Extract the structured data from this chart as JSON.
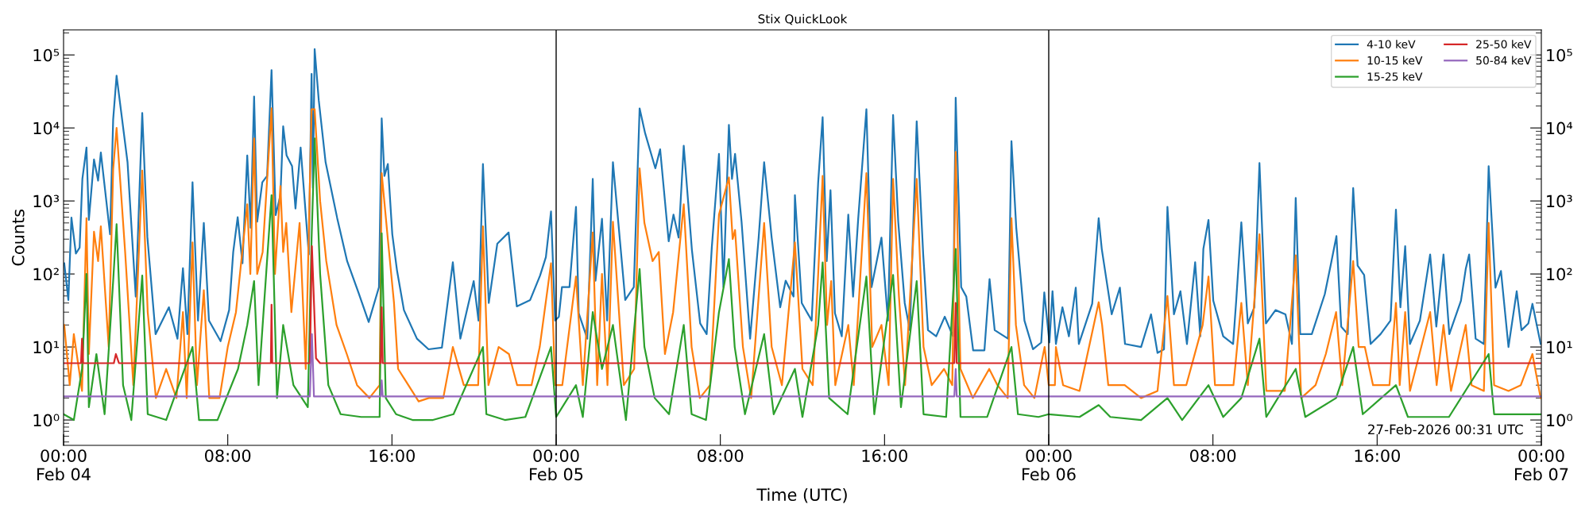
{
  "chart_data": {
    "type": "line",
    "title": "Stix QuickLook",
    "xlabel": "Time (UTC)",
    "ylabel": "Counts",
    "log": "y",
    "grid": false,
    "legend": "top right",
    "line_style": "solid",
    "marker": "none",
    "xlim": [
      "2026-02-04T00:00",
      "2026-02-07T00:00"
    ],
    "xticks": [
      {
        "value": "2026-02-04T00:00",
        "label": "00:00\nFeb 04"
      },
      {
        "value": "2026-02-04T08:00",
        "label": "08:00"
      },
      {
        "value": "2026-02-04T16:00",
        "label": "16:00"
      },
      {
        "value": "2026-02-05T00:00",
        "label": "00:00\nFeb 05"
      },
      {
        "value": "2026-02-05T08:00",
        "label": "08:00"
      },
      {
        "value": "2026-02-05T16:00",
        "label": "16:00"
      },
      {
        "value": "2026-02-06T00:00",
        "label": "00:00\nFeb 06"
      },
      {
        "value": "2026-02-06T08:00",
        "label": "08:00"
      },
      {
        "value": "2026-02-06T16:00",
        "label": "16:00"
      },
      {
        "value": "2026-02-07T00:00",
        "label": "00:00\nFeb 07"
      }
    ],
    "ylim": [
      0.45,
      220000
    ],
    "yticks": [
      {
        "value": 1,
        "label": "10⁰"
      },
      {
        "value": 10,
        "label": "10¹"
      },
      {
        "value": 100,
        "label": "10²"
      },
      {
        "value": 1000,
        "label": "10³"
      },
      {
        "value": 10000,
        "label": "10⁴"
      },
      {
        "value": 100000,
        "label": "10⁵"
      }
    ],
    "ref_lines": [
      {
        "axis": "x",
        "value": "2026-02-05T00:00",
        "color": "#000000"
      },
      {
        "axis": "x",
        "value": "2026-02-06T00:00",
        "color": "#000000"
      }
    ],
    "annotations": [
      "27-Feb-2026 00:31 UTC"
    ],
    "series": [
      {
        "name": "4-10 keV",
        "color": "#1f77b4",
        "x": [
          "2026-02-04T00:02",
          "2026-02-04T00:14",
          "2026-02-04T00:23",
          "2026-02-04T00:36",
          "2026-02-04T00:47",
          "2026-02-04T00:55",
          "2026-02-04T01:07",
          "2026-02-04T01:14",
          "2026-02-04T01:29",
          "2026-02-04T01:41",
          "2026-02-04T01:49",
          "2026-02-04T02:16",
          "2026-02-04T02:25",
          "2026-02-04T02:35",
          "2026-02-04T03:07",
          "2026-02-04T03:31",
          "2026-02-04T03:50",
          "2026-02-04T04:05",
          "2026-02-04T04:29",
          "2026-02-04T05:08",
          "2026-02-04T05:33",
          "2026-02-04T05:49",
          "2026-02-04T06:02",
          "2026-02-04T06:17",
          "2026-02-04T06:33",
          "2026-02-04T06:50",
          "2026-02-04T07:05",
          "2026-02-04T07:39",
          "2026-02-04T08:04",
          "2026-02-04T08:16",
          "2026-02-04T08:29",
          "2026-02-04T08:43",
          "2026-02-04T08:57",
          "2026-02-04T09:07",
          "2026-02-04T09:17",
          "2026-02-04T09:26",
          "2026-02-04T09:41",
          "2026-02-04T09:55",
          "2026-02-04T10:08",
          "2026-02-04T10:20",
          "2026-02-04T10:34",
          "2026-02-04T10:42",
          "2026-02-04T10:52",
          "2026-02-04T11:08",
          "2026-02-04T11:18",
          "2026-02-04T11:33",
          "2026-02-04T11:57",
          "2026-02-04T12:05",
          "2026-02-04T12:09",
          "2026-02-04T12:14",
          "2026-02-04T12:26",
          "2026-02-04T12:46",
          "2026-02-04T13:20",
          "2026-02-04T13:49",
          "2026-02-04T14:23",
          "2026-02-04T14:52",
          "2026-02-04T15:22",
          "2026-02-04T15:30",
          "2026-02-04T15:38",
          "2026-02-04T15:48",
          "2026-02-04T16:01",
          "2026-02-04T16:15",
          "2026-02-04T16:35",
          "2026-02-04T17:13",
          "2026-02-04T17:47",
          "2026-02-04T18:26",
          "2026-02-04T18:58",
          "2026-02-04T19:20",
          "2026-02-04T19:59",
          "2026-02-04T20:13",
          "2026-02-04T20:26",
          "2026-02-04T20:43",
          "2026-02-04T21:08",
          "2026-02-04T21:41",
          "2026-02-04T22:05",
          "2026-02-04T22:44",
          "2026-02-04T23:13",
          "2026-02-04T23:30",
          "2026-02-04T23:45",
          "2026-02-04T23:57",
          "2026-02-05T00:08",
          "2026-02-05T00:17",
          "2026-02-05T00:39",
          "2026-02-05T00:58",
          "2026-02-05T01:06",
          "2026-02-05T01:31",
          "2026-02-05T01:47",
          "2026-02-05T01:55",
          "2026-02-05T02:14",
          "2026-02-05T02:29",
          "2026-02-05T02:46",
          "2026-02-05T03:22",
          "2026-02-05T03:47",
          "2026-02-05T04:04",
          "2026-02-05T04:20",
          "2026-02-05T04:50",
          "2026-02-05T05:04",
          "2026-02-05T05:29",
          "2026-02-05T05:43",
          "2026-02-05T05:58",
          "2026-02-05T06:13",
          "2026-02-05T06:37",
          "2026-02-05T07:01",
          "2026-02-05T07:20",
          "2026-02-05T07:35",
          "2026-02-05T07:56",
          "2026-02-05T08:09",
          "2026-02-05T08:25",
          "2026-02-05T08:34",
          "2026-02-05T08:43",
          "2026-02-05T09:02",
          "2026-02-05T09:27",
          "2026-02-05T09:52",
          "2026-02-05T10:08",
          "2026-02-05T10:30",
          "2026-02-05T10:55",
          "2026-02-05T11:11",
          "2026-02-05T11:34",
          "2026-02-05T11:38",
          "2026-02-05T11:58",
          "2026-02-05T12:27",
          "2026-02-05T12:46",
          "2026-02-05T12:59",
          "2026-02-05T13:11",
          "2026-02-05T13:22",
          "2026-02-05T13:35",
          "2026-02-05T13:55",
          "2026-02-05T14:14",
          "2026-02-05T14:28",
          "2026-02-05T14:43",
          "2026-02-05T15:07",
          "2026-02-05T15:22",
          "2026-02-05T15:51",
          "2026-02-05T16:10",
          "2026-02-05T16:25",
          "2026-02-05T16:40",
          "2026-02-05T16:59",
          "2026-02-05T17:14",
          "2026-02-05T17:34",
          "2026-02-05T17:53",
          "2026-02-05T18:07",
          "2026-02-05T18:31",
          "2026-02-05T18:56",
          "2026-02-05T19:20",
          "2026-02-05T19:28",
          "2026-02-05T19:44",
          "2026-02-05T19:59",
          "2026-02-05T20:19",
          "2026-02-05T20:52",
          "2026-02-05T21:07",
          "2026-02-05T21:22",
          "2026-02-05T22:01",
          "2026-02-05T22:11",
          "2026-02-05T22:25",
          "2026-02-05T22:49",
          "2026-02-05T23:14",
          "2026-02-05T23:38",
          "2026-02-05T23:47",
          "2026-02-06T00:02",
          "2026-02-06T00:11",
          "2026-02-06T00:21",
          "2026-02-06T00:40",
          "2026-02-06T00:59",
          "2026-02-06T01:19",
          "2026-02-06T01:28",
          "2026-02-06T02:07",
          "2026-02-06T02:26",
          "2026-02-06T02:35",
          "2026-02-06T03:04",
          "2026-02-06T03:28",
          "2026-02-06T03:43",
          "2026-02-06T04:30",
          "2026-02-06T04:59",
          "2026-02-06T05:18",
          "2026-02-06T05:37",
          "2026-02-06T05:47",
          "2026-02-06T06:06",
          "2026-02-06T06:25",
          "2026-02-06T06:44",
          "2026-02-06T07:08",
          "2026-02-06T07:23",
          "2026-02-06T07:32",
          "2026-02-06T07:47",
          "2026-02-06T08:01",
          "2026-02-06T08:30",
          "2026-02-06T08:59",
          "2026-02-06T09:08",
          "2026-02-06T09:23",
          "2026-02-06T09:42",
          "2026-02-06T10:01",
          "2026-02-06T10:16",
          "2026-02-06T10:35",
          "2026-02-06T11:03",
          "2026-02-06T11:32",
          "2026-02-06T11:51",
          "2026-02-06T12:02",
          "2026-02-06T12:15",
          "2026-02-06T12:49",
          "2026-02-06T13:27",
          "2026-02-06T13:46",
          "2026-02-06T14:01",
          "2026-02-06T14:15",
          "2026-02-06T14:34",
          "2026-02-06T14:50",
          "2026-02-06T15:03",
          "2026-02-06T15:22",
          "2026-02-06T15:41",
          "2026-02-06T16:10",
          "2026-02-06T16:39",
          "2026-02-06T16:55",
          "2026-02-06T17:08",
          "2026-02-06T17:22",
          "2026-02-06T17:36",
          "2026-02-06T18:05",
          "2026-02-06T18:35",
          "2026-02-06T18:53",
          "2026-02-06T19:14",
          "2026-02-06T19:31",
          "2026-02-06T20:05",
          "2026-02-06T20:19",
          "2026-02-06T20:29",
          "2026-02-06T20:48",
          "2026-02-06T21:12",
          "2026-02-06T21:26",
          "2026-02-06T21:46",
          "2026-02-06T22:02",
          "2026-02-06T22:24",
          "2026-02-06T22:48",
          "2026-02-06T23:02",
          "2026-02-06T23:22",
          "2026-02-06T23:34",
          "2026-02-06T23:58"
        ],
        "values": [
          140,
          44,
          590,
          190,
          230,
          2000,
          5400,
          550,
          3700,
          1900,
          4600,
          350,
          13000,
          52000,
          3400,
          49,
          16000,
          320,
          15,
          35,
          13,
          120,
          15,
          1800,
          23,
          500,
          23,
          12,
          32,
          200,
          600,
          140,
          4200,
          430,
          27000,
          520,
          1800,
          2200,
          62000,
          640,
          1200,
          10500,
          4200,
          3000,
          790,
          5400,
          185,
          55000,
          1500,
          120000,
          24000,
          3400,
          580,
          150,
          54,
          22,
          66,
          13500,
          2200,
          3200,
          350,
          110,
          32,
          13,
          9.3,
          9.8,
          145,
          13,
          80,
          23,
          3200,
          40,
          260,
          370,
          36,
          44,
          95,
          170,
          720,
          23,
          26,
          66,
          66,
          830,
          29,
          13,
          2000,
          81,
          570,
          23,
          3400,
          44,
          66,
          18500,
          8500,
          2800,
          5100,
          280,
          650,
          315,
          5700,
          210,
          21,
          15,
          230,
          4400,
          66,
          11000,
          2000,
          4400,
          520,
          13,
          315,
          3400,
          315,
          35,
          81,
          49,
          1200,
          40,
          23,
          1800,
          14000,
          150,
          1400,
          29,
          14,
          650,
          49,
          570,
          18000,
          66,
          315,
          23,
          15000,
          520,
          40,
          17,
          12300,
          185,
          17,
          14,
          26,
          14,
          26000,
          66,
          49,
          9,
          9,
          85,
          17,
          13,
          6600,
          430,
          23,
          9.3,
          11.5,
          56,
          11.5,
          58,
          11,
          35,
          14,
          65,
          11,
          39,
          580,
          220,
          28,
          65,
          11,
          10,
          28,
          8.3,
          9.3,
          830,
          28,
          58,
          11,
          145,
          14,
          220,
          550,
          43,
          14,
          11,
          43,
          510,
          21,
          35,
          3300,
          21,
          32,
          28,
          11,
          1100,
          15,
          15,
          53,
          145,
          330,
          19,
          15,
          1500,
          130,
          97,
          11,
          15,
          23,
          760,
          35,
          240,
          11,
          23,
          185,
          19,
          185,
          15,
          43,
          117,
          185,
          13,
          11,
          3000,
          65,
          110,
          10,
          58,
          17,
          21,
          39,
          11
        ]
      },
      {
        "name": "10-15 keV",
        "color": "#ff7f0e",
        "x": [
          "2026-02-04T00:02",
          "2026-02-04T00:18",
          "2026-02-04T00:30",
          "2026-02-04T00:54",
          "2026-02-04T01:07",
          "2026-02-04T01:14",
          "2026-02-04T01:29",
          "2026-02-04T01:41",
          "2026-02-04T01:49",
          "2026-02-04T02:12",
          "2026-02-04T02:25",
          "2026-02-04T02:35",
          "2026-02-04T03:00",
          "2026-02-04T03:24",
          "2026-02-04T03:50",
          "2026-02-04T04:06",
          "2026-02-04T04:30",
          "2026-02-04T05:00",
          "2026-02-04T05:30",
          "2026-02-04T05:49",
          "2026-02-04T06:00",
          "2026-02-04T06:17",
          "2026-02-04T06:30",
          "2026-02-04T06:50",
          "2026-02-04T07:06",
          "2026-02-04T07:36",
          "2026-02-04T08:00",
          "2026-02-04T08:24",
          "2026-02-04T08:57",
          "2026-02-04T09:06",
          "2026-02-04T09:17",
          "2026-02-04T09:26",
          "2026-02-04T09:42",
          "2026-02-04T10:08",
          "2026-02-04T10:18",
          "2026-02-04T10:34",
          "2026-02-04T10:42",
          "2026-02-04T10:51",
          "2026-02-04T11:06",
          "2026-02-04T11:30",
          "2026-02-04T11:48",
          "2026-02-04T12:05",
          "2026-02-04T12:14",
          "2026-02-04T12:30",
          "2026-02-04T12:48",
          "2026-02-04T13:18",
          "2026-02-04T13:48",
          "2026-02-04T14:18",
          "2026-02-04T14:54",
          "2026-02-04T15:24",
          "2026-02-04T15:30",
          "2026-02-04T15:48",
          "2026-02-04T16:06",
          "2026-02-04T16:18",
          "2026-02-04T16:48",
          "2026-02-04T17:18",
          "2026-02-04T17:48",
          "2026-02-04T18:30",
          "2026-02-04T18:58",
          "2026-02-04T19:30",
          "2026-02-04T20:12",
          "2026-02-04T20:26",
          "2026-02-04T20:42",
          "2026-02-04T21:12",
          "2026-02-04T21:42",
          "2026-02-04T22:06",
          "2026-02-04T22:48",
          "2026-02-04T23:12",
          "2026-02-04T23:45",
          "2026-02-04T23:57",
          "2026-02-05T00:18",
          "2026-02-05T00:58",
          "2026-02-05T01:18",
          "2026-02-05T01:47",
          "2026-02-05T02:00",
          "2026-02-05T02:14",
          "2026-02-05T02:30",
          "2026-02-05T02:46",
          "2026-02-05T03:18",
          "2026-02-05T03:48",
          "2026-02-05T04:04",
          "2026-02-05T04:18",
          "2026-02-05T04:42",
          "2026-02-05T05:00",
          "2026-02-05T05:18",
          "2026-02-05T05:42",
          "2026-02-05T06:13",
          "2026-02-05T06:36",
          "2026-02-05T07:00",
          "2026-02-05T07:30",
          "2026-02-05T07:56",
          "2026-02-05T08:25",
          "2026-02-05T08:36",
          "2026-02-05T08:43",
          "2026-02-05T09:06",
          "2026-02-05T09:30",
          "2026-02-05T10:08",
          "2026-02-05T10:30",
          "2026-02-05T11:00",
          "2026-02-05T11:38",
          "2026-02-05T12:00",
          "2026-02-05T12:30",
          "2026-02-05T12:46",
          "2026-02-05T12:59",
          "2026-02-05T13:12",
          "2026-02-05T13:24",
          "2026-02-05T13:36",
          "2026-02-05T14:14",
          "2026-02-05T14:30",
          "2026-02-05T14:43",
          "2026-02-05T15:07",
          "2026-02-05T15:24",
          "2026-02-05T15:51",
          "2026-02-05T16:12",
          "2026-02-05T16:25",
          "2026-02-05T16:42",
          "2026-02-05T17:00",
          "2026-02-05T17:34",
          "2026-02-05T17:54",
          "2026-02-05T18:18",
          "2026-02-05T18:54",
          "2026-02-05T19:18",
          "2026-02-05T19:28",
          "2026-02-05T19:42",
          "2026-02-05T20:18",
          "2026-02-05T21:06",
          "2026-02-05T21:30",
          "2026-02-05T22:00",
          "2026-02-05T22:11",
          "2026-02-05T22:24",
          "2026-02-05T22:48",
          "2026-02-05T23:18",
          "2026-02-05T23:48",
          "2026-02-06T00:00",
          "2026-02-06T00:18",
          "2026-02-06T00:21",
          "2026-02-06T00:42",
          "2026-02-06T01:30",
          "2026-02-06T02:26",
          "2026-02-06T02:36",
          "2026-02-06T02:54",
          "2026-02-06T03:42",
          "2026-02-06T04:30",
          "2026-02-06T05:18",
          "2026-02-06T05:47",
          "2026-02-06T06:06",
          "2026-02-06T06:42",
          "2026-02-06T07:30",
          "2026-02-06T07:47",
          "2026-02-06T08:06",
          "2026-02-06T09:00",
          "2026-02-06T09:23",
          "2026-02-06T09:42",
          "2026-02-06T10:16",
          "2026-02-06T10:36",
          "2026-02-06T11:30",
          "2026-02-06T12:02",
          "2026-02-06T12:18",
          "2026-02-06T13:00",
          "2026-02-06T13:30",
          "2026-02-06T14:00",
          "2026-02-06T14:18",
          "2026-02-06T14:50",
          "2026-02-06T15:06",
          "2026-02-06T15:24",
          "2026-02-06T15:48",
          "2026-02-06T16:36",
          "2026-02-06T16:55",
          "2026-02-06T17:06",
          "2026-02-06T17:22",
          "2026-02-06T17:36",
          "2026-02-06T18:35",
          "2026-02-06T18:54",
          "2026-02-06T19:14",
          "2026-02-06T19:36",
          "2026-02-06T20:19",
          "2026-02-06T20:36",
          "2026-02-06T21:12",
          "2026-02-06T21:26",
          "2026-02-06T21:42",
          "2026-02-06T22:24",
          "2026-02-06T23:00",
          "2026-02-06T23:34",
          "2026-02-06T23:58"
        ],
        "values": [
          20,
          3,
          15,
          2.5,
          580,
          8,
          380,
          150,
          450,
          10,
          2700,
          10000,
          200,
          3,
          2600,
          30,
          2,
          5,
          2,
          30,
          2,
          270,
          3,
          60,
          2,
          2,
          10,
          30,
          900,
          100,
          7200,
          100,
          200,
          18600,
          100,
          1600,
          200,
          500,
          30,
          500,
          5,
          18000,
          18000,
          1000,
          150,
          20,
          8,
          3,
          2,
          3,
          2400,
          300,
          40,
          5,
          3,
          1.8,
          2,
          2,
          10,
          3,
          3,
          450,
          3,
          10,
          8,
          3,
          3,
          10,
          140,
          3,
          3,
          92,
          3,
          370,
          3,
          100,
          3,
          520,
          3,
          5,
          2800,
          500,
          150,
          200,
          8,
          30,
          900,
          10,
          2,
          3,
          650,
          2100,
          300,
          400,
          10,
          2,
          500,
          10,
          3,
          270,
          5,
          3,
          100,
          2200,
          20,
          80,
          3,
          20,
          3,
          30,
          2400,
          10,
          20,
          3,
          2000,
          50,
          3,
          2000,
          10,
          3,
          5,
          3,
          4700,
          5,
          2,
          5,
          3,
          2,
          580,
          20,
          3,
          2,
          10,
          3,
          3,
          10,
          3,
          2.5,
          41,
          20,
          3,
          3,
          2,
          2.5,
          50,
          3,
          3,
          20,
          92,
          3,
          3,
          40,
          3,
          350,
          2.5,
          2.5,
          180,
          2,
          3,
          8,
          30,
          3,
          150,
          10,
          10,
          3,
          3,
          40,
          3,
          30,
          2.5,
          30,
          3,
          20,
          2.5,
          20,
          3,
          2.5,
          500,
          3,
          2.5,
          3,
          8,
          2
        ]
      },
      {
        "name": "15-25 keV",
        "color": "#2ca02c",
        "x": [
          "2026-02-04T00:00",
          "2026-02-04T00:30",
          "2026-02-04T00:54",
          "2026-02-04T01:07",
          "2026-02-04T01:14",
          "2026-02-04T01:36",
          "2026-02-04T02:00",
          "2026-02-04T02:25",
          "2026-02-04T02:35",
          "2026-02-04T02:54",
          "2026-02-04T03:18",
          "2026-02-04T03:50",
          "2026-02-04T04:06",
          "2026-02-04T05:00",
          "2026-02-04T06:17",
          "2026-02-04T06:36",
          "2026-02-04T07:30",
          "2026-02-04T08:30",
          "2026-02-04T08:57",
          "2026-02-04T09:17",
          "2026-02-04T09:30",
          "2026-02-04T10:08",
          "2026-02-04T10:24",
          "2026-02-04T10:42",
          "2026-02-04T11:12",
          "2026-02-04T11:54",
          "2026-02-04T12:05",
          "2026-02-04T12:14",
          "2026-02-04T12:30",
          "2026-02-04T12:54",
          "2026-02-04T13:30",
          "2026-02-04T14:30",
          "2026-02-04T15:24",
          "2026-02-04T15:30",
          "2026-02-04T15:42",
          "2026-02-04T16:12",
          "2026-02-04T17:00",
          "2026-02-04T18:00",
          "2026-02-04T19:00",
          "2026-02-04T20:26",
          "2026-02-04T20:36",
          "2026-02-04T21:30",
          "2026-02-04T22:30",
          "2026-02-04T23:45",
          "2026-02-05T00:00",
          "2026-02-05T00:58",
          "2026-02-05T01:18",
          "2026-02-05T01:47",
          "2026-02-05T02:14",
          "2026-02-05T02:46",
          "2026-02-05T03:24",
          "2026-02-05T04:04",
          "2026-02-05T04:18",
          "2026-02-05T04:48",
          "2026-02-05T05:30",
          "2026-02-05T06:13",
          "2026-02-05T06:36",
          "2026-02-05T07:18",
          "2026-02-05T07:56",
          "2026-02-05T08:25",
          "2026-02-05T08:42",
          "2026-02-05T09:12",
          "2026-02-05T10:08",
          "2026-02-05T10:36",
          "2026-02-05T11:38",
          "2026-02-05T12:00",
          "2026-02-05T12:46",
          "2026-02-05T12:59",
          "2026-02-05T13:18",
          "2026-02-05T14:12",
          "2026-02-05T15:07",
          "2026-02-05T15:30",
          "2026-02-05T16:25",
          "2026-02-05T16:48",
          "2026-02-05T17:34",
          "2026-02-05T17:54",
          "2026-02-05T19:00",
          "2026-02-05T19:28",
          "2026-02-05T19:42",
          "2026-02-05T21:00",
          "2026-02-05T22:11",
          "2026-02-05T22:30",
          "2026-02-05T23:30",
          "2026-02-06T00:00",
          "2026-02-06T01:30",
          "2026-02-06T02:26",
          "2026-02-06T03:00",
          "2026-02-06T04:30",
          "2026-02-06T05:47",
          "2026-02-06T06:30",
          "2026-02-06T07:47",
          "2026-02-06T08:30",
          "2026-02-06T09:23",
          "2026-02-06T10:16",
          "2026-02-06T10:36",
          "2026-02-06T12:02",
          "2026-02-06T12:30",
          "2026-02-06T14:00",
          "2026-02-06T14:50",
          "2026-02-06T15:18",
          "2026-02-06T16:55",
          "2026-02-06T17:30",
          "2026-02-06T19:30",
          "2026-02-06T21:26",
          "2026-02-06T21:42",
          "2026-02-06T23:58"
        ],
        "values": [
          1.2,
          1.0,
          5,
          100,
          1.5,
          8,
          1.2,
          80,
          480,
          3,
          1.0,
          95,
          1.2,
          1.0,
          10,
          1.0,
          1.0,
          5,
          20,
          80,
          3,
          1200,
          2,
          20,
          3,
          1.5,
          300,
          7200,
          100,
          3,
          1.2,
          1.1,
          1.1,
          360,
          2,
          1.2,
          1.0,
          1.0,
          1.2,
          10,
          1.2,
          1.0,
          1.1,
          10,
          1.1,
          3,
          1.1,
          30,
          5,
          20,
          1.0,
          117,
          10,
          2,
          1.2,
          20,
          1.2,
          1.0,
          30,
          160,
          10,
          1.2,
          15,
          1.2,
          5,
          1.1,
          20,
          144,
          2,
          1.2,
          92,
          1.2,
          97,
          1.5,
          80,
          1.2,
          1.1,
          220,
          1.1,
          1.1,
          10,
          1.2,
          1.1,
          1.2,
          1.1,
          1.6,
          1.1,
          1.0,
          2,
          1.0,
          3,
          1.1,
          2,
          13,
          1.1,
          5,
          1.1,
          2,
          10,
          1.2,
          3,
          1.1,
          1.1,
          8,
          1.2,
          1.2
        ]
      },
      {
        "name": "25-50 keV",
        "color": "#d62728",
        "x": [
          "2026-02-04T00:00",
          "2026-02-04T00:51",
          "2026-02-04T00:54",
          "2026-02-04T00:57",
          "2026-02-04T02:27",
          "2026-02-04T02:33",
          "2026-02-04T02:42",
          "2026-02-04T10:06",
          "2026-02-04T10:08",
          "2026-02-04T10:10",
          "2026-02-04T12:00",
          "2026-02-04T12:06",
          "2026-02-04T12:18",
          "2026-02-04T12:30",
          "2026-02-04T15:27",
          "2026-02-04T15:30",
          "2026-02-04T15:33",
          "2026-02-05T19:24",
          "2026-02-05T19:28",
          "2026-02-05T19:31",
          "2026-02-07T00:00"
        ],
        "values": [
          6,
          6,
          13,
          6,
          6,
          8,
          6,
          6,
          38,
          6,
          6,
          240,
          7,
          6,
          6,
          35,
          6,
          6,
          40,
          6,
          6
        ]
      },
      {
        "name": "50-84 keV",
        "color": "#9467bd",
        "x": [
          "2026-02-04T00:00",
          "2026-02-04T12:00",
          "2026-02-04T12:06",
          "2026-02-04T12:12",
          "2026-02-04T15:27",
          "2026-02-04T15:30",
          "2026-02-04T15:33",
          "2026-02-05T19:24",
          "2026-02-05T19:28",
          "2026-02-05T19:31",
          "2026-02-07T00:00"
        ],
        "values": [
          2.1,
          2.1,
          15,
          2.1,
          2.1,
          3.5,
          2.1,
          2.1,
          5,
          2.1,
          2.1
        ]
      }
    ]
  }
}
